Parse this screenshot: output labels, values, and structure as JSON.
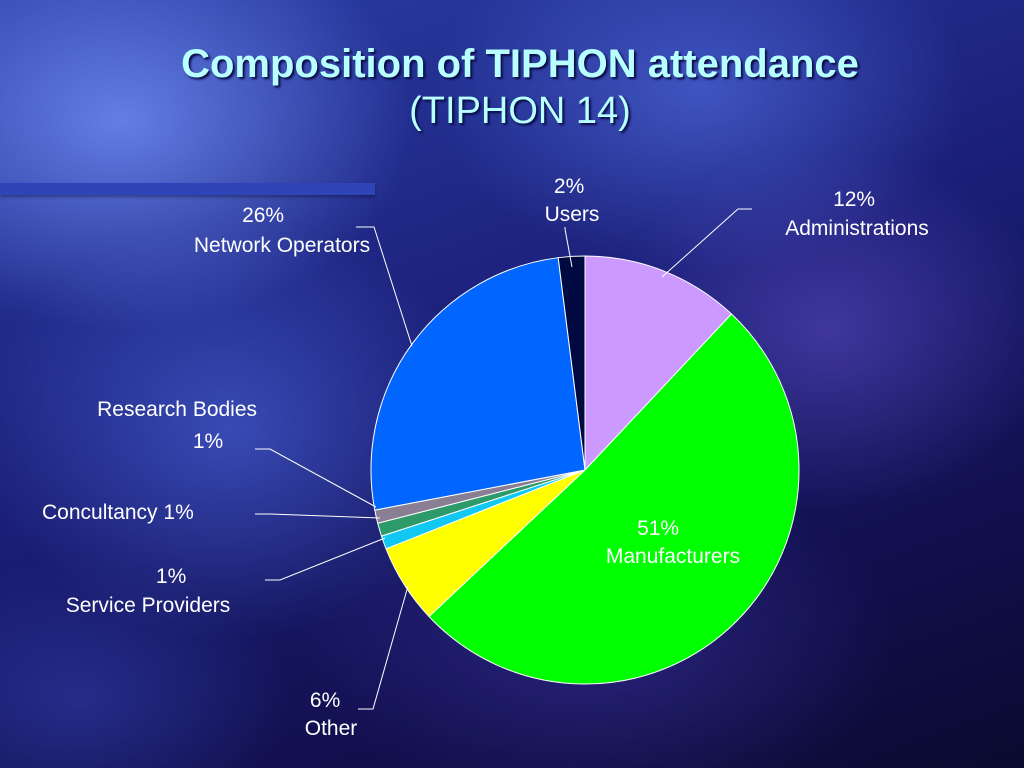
{
  "slide": {
    "title": "Composition of TIPHON attendance",
    "subtitle": "(TIPHON 14)"
  },
  "chart_data": {
    "type": "pie",
    "title": "Composition of TIPHON attendance (TIPHON 14)",
    "slices": [
      {
        "name": "Administrations",
        "value": 12,
        "label_pct": "12%",
        "color": "#cc99ff"
      },
      {
        "name": "Manufacturers",
        "value": 51,
        "label_pct": "51%",
        "color": "#00ff00"
      },
      {
        "name": "Other",
        "value": 6,
        "label_pct": "6%",
        "color": "#ffff00"
      },
      {
        "name": "Service Providers",
        "value": 1,
        "label_pct": "1%",
        "color": "#11c8f2"
      },
      {
        "name": "Concultancy",
        "value": 1,
        "label_pct": "1%",
        "color": "#2e9a6a"
      },
      {
        "name": "Research Bodies",
        "value": 1,
        "label_pct": "1%",
        "color": "#8a7e94"
      },
      {
        "name": "Network Operators",
        "value": 26,
        "label_pct": "26%",
        "color": "#0066ff"
      },
      {
        "name": "Users",
        "value": 2,
        "label_pct": "2%",
        "color": "#000a40"
      }
    ],
    "labels": {
      "administrations": [
        "12%",
        "Administrations"
      ],
      "manufacturers": [
        "51%",
        "Manufacturers"
      ],
      "other": [
        "6%",
        "Other"
      ],
      "service_providers": [
        "1%",
        "Service Providers"
      ],
      "concultancy": [
        "Concultancy 1%"
      ],
      "research_bodies": [
        "Research Bodies",
        "1%"
      ],
      "network_operators": [
        "26%",
        "Network Operators"
      ],
      "users": [
        "2%",
        "Users"
      ]
    }
  }
}
